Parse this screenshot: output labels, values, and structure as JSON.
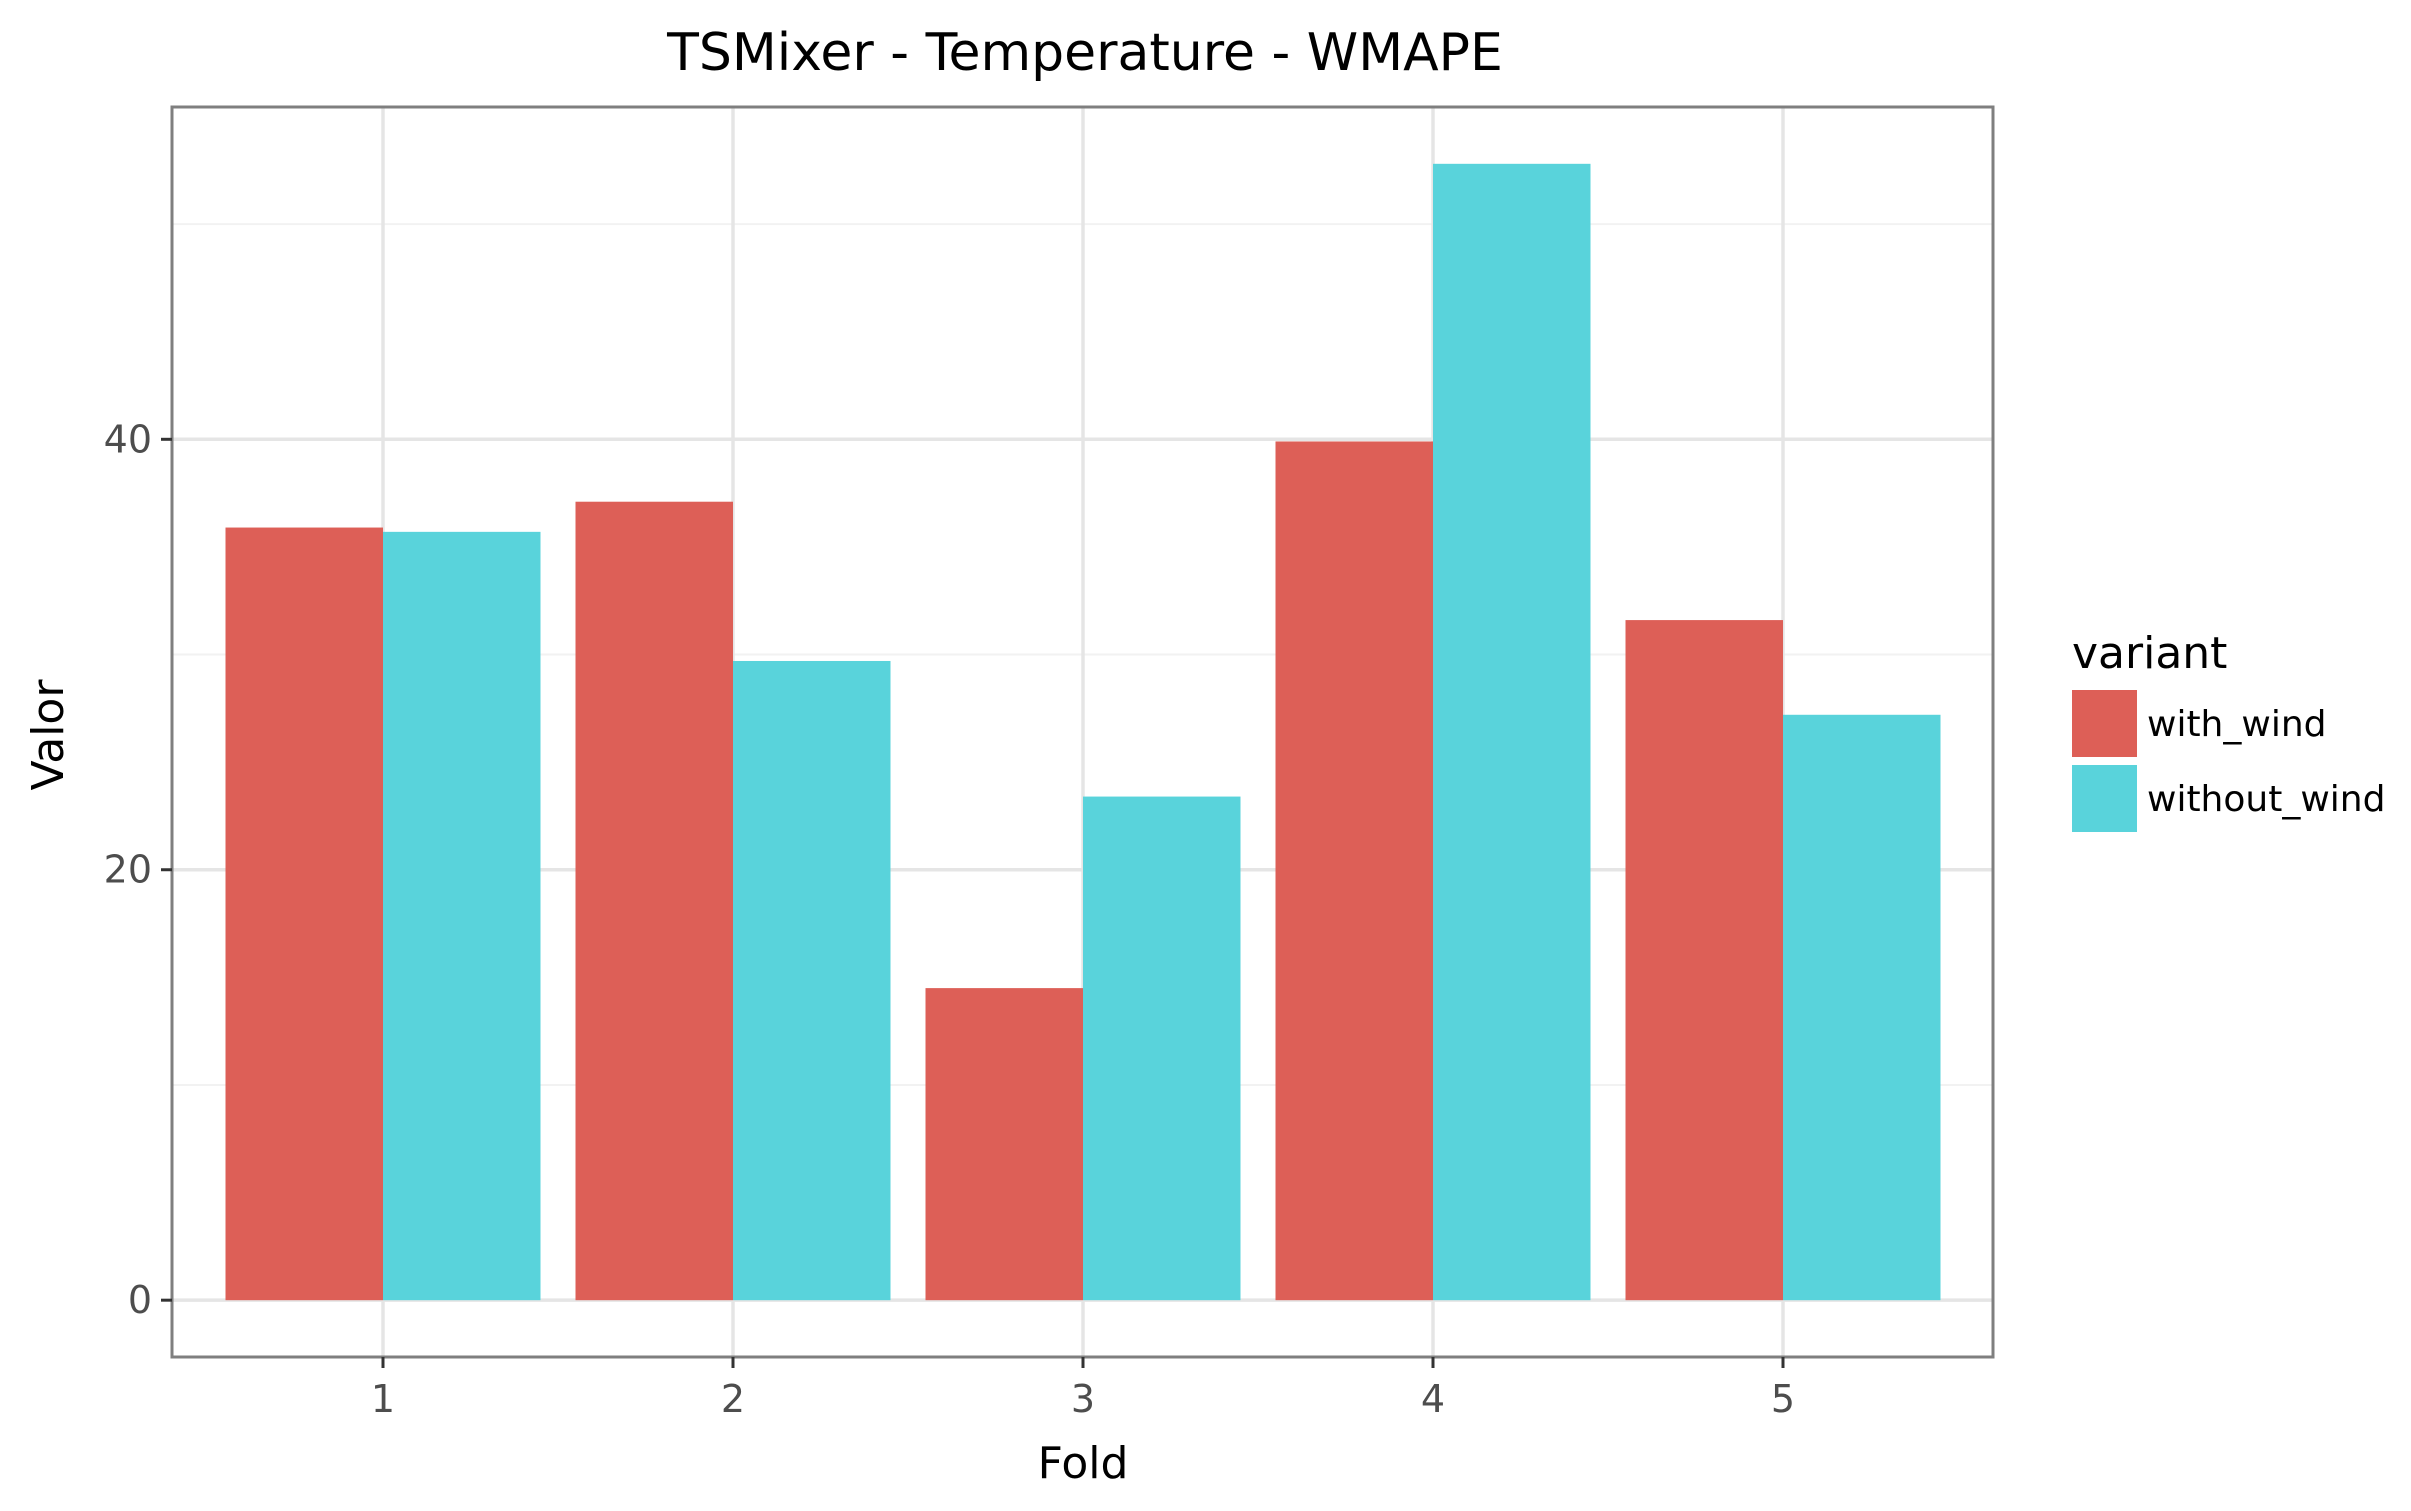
{
  "chart_data": {
    "type": "bar",
    "title": "TSMixer - Temperature - WMAPE",
    "xlabel": "Fold",
    "ylabel": "Valor",
    "categories": [
      "1",
      "2",
      "3",
      "4",
      "5"
    ],
    "series": [
      {
        "name": "with_wind",
        "color": "#dd5f57",
        "values": [
          35.9,
          37.1,
          14.5,
          39.9,
          31.6
        ]
      },
      {
        "name": "without_wind",
        "color": "#59d3db",
        "values": [
          35.7,
          29.7,
          23.4,
          52.8,
          27.2
        ]
      }
    ],
    "yticks": [
      0,
      20,
      40
    ],
    "ylim": [
      -2.64,
      55.44
    ],
    "legend": {
      "title": "variant",
      "position": "right"
    },
    "grid": true
  }
}
